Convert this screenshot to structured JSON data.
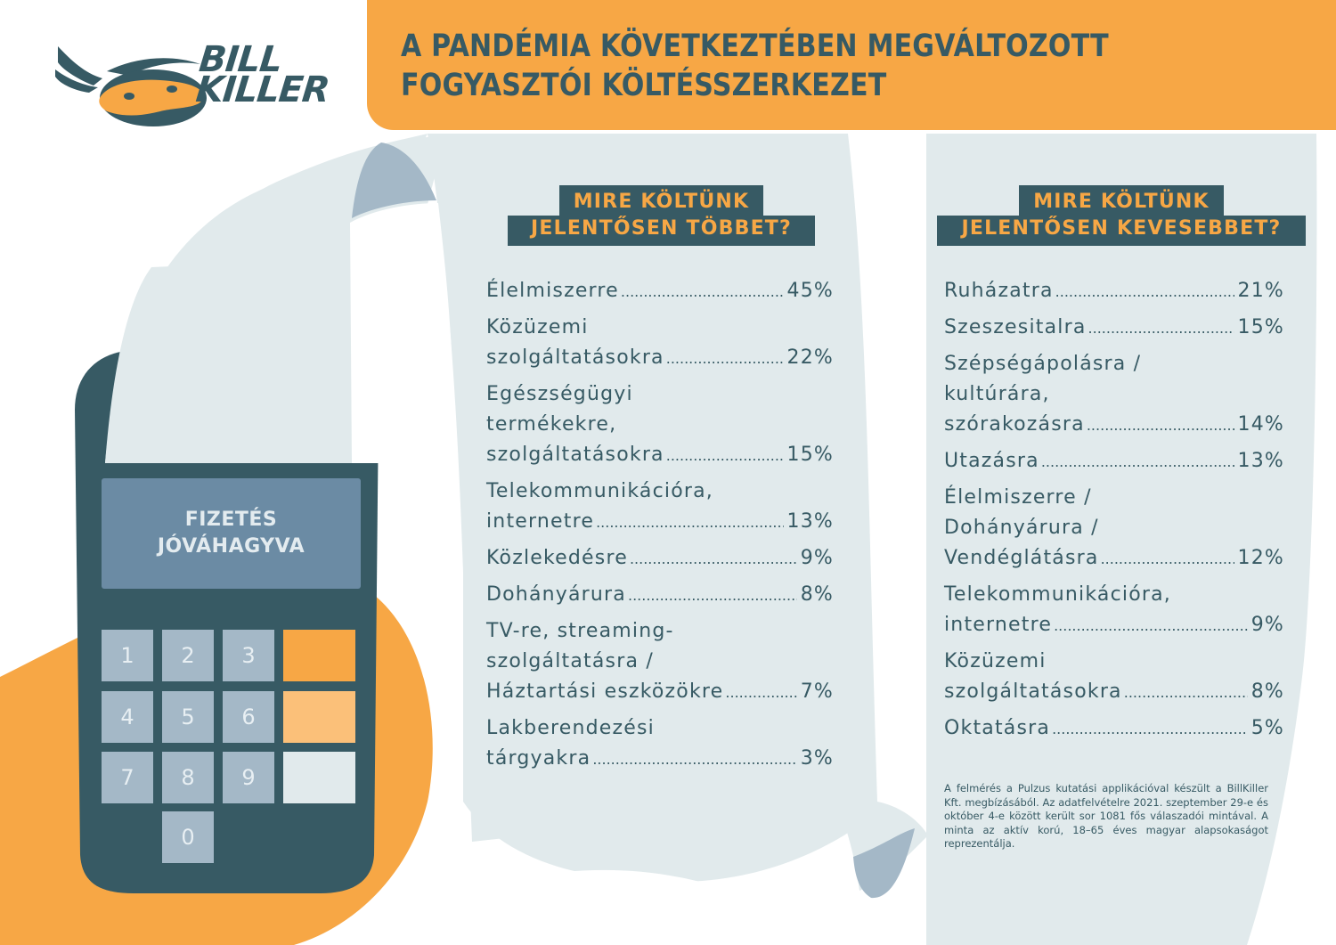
{
  "brand": {
    "logo_line1": "BILL",
    "logo_line2": "KILLER"
  },
  "header": {
    "title_line1": "A PANDÉMIA KÖVETKEZTÉBEN MEGVÁLTOZOTT",
    "title_line2": "FOGYASZTÓI KÖLTÉSSZERKEZET"
  },
  "colors": {
    "orange": "#f7a745",
    "teal": "#375a64",
    "paper": "#e1eaec",
    "screen": "#6b8ba4",
    "key": "#a4b8c7",
    "light_orange": "#fbc079"
  },
  "terminal": {
    "screen_line1": "FIZETÉS",
    "screen_line2": "JÓVÁHAGYVA",
    "keys": [
      "1",
      "2",
      "3",
      "4",
      "5",
      "6",
      "7",
      "8",
      "9",
      "0"
    ]
  },
  "more": {
    "heading_line1": "MIRE KÖLTÜNK",
    "heading_line2": "JELENTŐSEN TÖBBET?",
    "items": [
      {
        "lines": [],
        "last": "Élelmiszerre",
        "pct": "45%"
      },
      {
        "lines": [
          "Közüzemi"
        ],
        "last": "szolgáltatásokra",
        "pct": "22%"
      },
      {
        "lines": [
          "Egészségügyi",
          "termékekre,"
        ],
        "last": "szolgáltatásokra",
        "pct": "15%"
      },
      {
        "lines": [
          "Telekommunikációra,"
        ],
        "last": "internetre",
        "pct": "13%"
      },
      {
        "lines": [],
        "last": "Közlekedésre",
        "pct": "9%"
      },
      {
        "lines": [],
        "last": "Dohányárura",
        "pct": "8%"
      },
      {
        "lines": [
          "TV-re, streaming-",
          "szolgáltatásra /"
        ],
        "last": "Háztartási eszközökre",
        "pct": "7%"
      },
      {
        "lines": [
          "Lakberendezési"
        ],
        "last": "tárgyakra",
        "pct": "3%"
      }
    ]
  },
  "less": {
    "heading_line1": "MIRE KÖLTÜNK",
    "heading_line2": "JELENTŐSEN KEVESEBBET?",
    "items": [
      {
        "lines": [],
        "last": "Ruházatra",
        "pct": "21%"
      },
      {
        "lines": [],
        "last": "Szeszesitalra",
        "pct": "15%"
      },
      {
        "lines": [
          "Szépségápolásra /",
          "kultúrára,"
        ],
        "last": "szórakozásra",
        "pct": "14%"
      },
      {
        "lines": [],
        "last": "Utazásra",
        "pct": "13%"
      },
      {
        "lines": [
          "Élelmiszerre /",
          "Dohányárura /"
        ],
        "last": "Vendéglátásra",
        "pct": "12%"
      },
      {
        "lines": [
          "Telekommunikációra,"
        ],
        "last": "internetre",
        "pct": "9%"
      },
      {
        "lines": [
          "Közüzemi"
        ],
        "last": "szolgáltatásokra",
        "pct": "8%"
      },
      {
        "lines": [],
        "last": "Oktatásra",
        "pct": "5%"
      }
    ]
  },
  "footnote": "A felmérés a Pulzus kutatási applikációval készült a BillKiller Kft. megbízásából. Az adatfelvételre 2021. szeptember 29-e és október 4-e között került sor 1081 fős válaszadói mintával. A minta az aktív korú, 18–65 éves magyar alapsokaságot reprezentálja."
}
